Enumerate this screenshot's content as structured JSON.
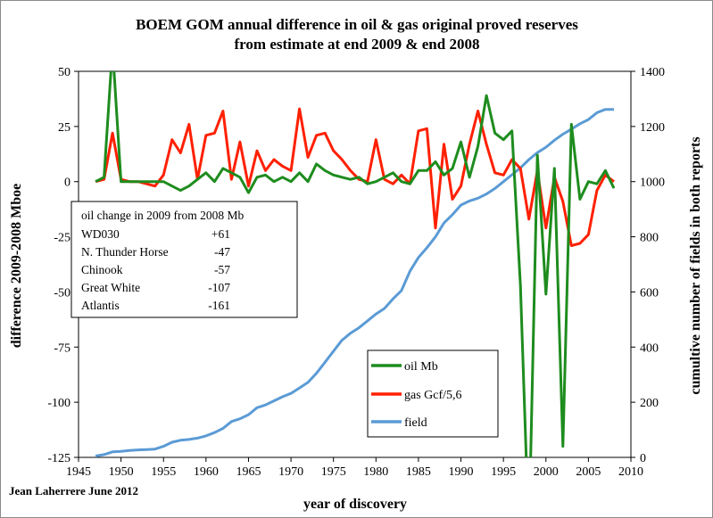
{
  "chart_data": {
    "type": "line",
    "title_line1": "BOEM GOM annual difference in oil & gas original proved reserves",
    "title_line2": "from estimate at end 2009 & end 2008",
    "xlabel": "year of discovery",
    "ylabel_left": "difference 2009-2008 Mboe",
    "ylabel_right": "cumultive number of fields in both reports",
    "xlim": [
      1945,
      2010
    ],
    "ylim_left": [
      -125,
      50
    ],
    "ylim_right": [
      0,
      1400
    ],
    "x_ticks": [
      "1945",
      "1950",
      "1955",
      "1960",
      "1965",
      "1970",
      "1975",
      "1980",
      "1985",
      "1990",
      "1995",
      "2000",
      "2005",
      "2010"
    ],
    "y_left_ticks": [
      "50",
      "25",
      "0",
      "-25",
      "-50",
      "-75",
      "-100",
      "-125"
    ],
    "y_right_ticks": [
      "1400",
      "1200",
      "1000",
      "800",
      "600",
      "400",
      "200",
      "0"
    ],
    "grid": false,
    "credit": "Jean Laherrere June 2012",
    "annotation": {
      "heading": "oil change in 2009 from 2008 Mb",
      "rows": [
        {
          "name": "WD030",
          "value": "+61"
        },
        {
          "name": "N. Thunder Horse",
          "value": "-47"
        },
        {
          "name": "Chinook",
          "value": "-57"
        },
        {
          "name": "Great White",
          "value": "-107"
        },
        {
          "name": "Atlantis",
          "value": "-161"
        }
      ]
    },
    "legend_position": "bottom-center",
    "series": [
      {
        "name": "oil Mb",
        "axis": "left",
        "color": "#1e8c1e",
        "points": [
          [
            1947,
            0
          ],
          [
            1948,
            2
          ],
          [
            1949,
            61
          ],
          [
            1950,
            0
          ],
          [
            1951,
            0
          ],
          [
            1952,
            0
          ],
          [
            1953,
            0
          ],
          [
            1954,
            0
          ],
          [
            1955,
            0
          ],
          [
            1956,
            -2
          ],
          [
            1957,
            -4
          ],
          [
            1958,
            -2
          ],
          [
            1959,
            1
          ],
          [
            1960,
            4
          ],
          [
            1961,
            0
          ],
          [
            1962,
            6
          ],
          [
            1963,
            4
          ],
          [
            1964,
            2
          ],
          [
            1965,
            -5
          ],
          [
            1966,
            2
          ],
          [
            1967,
            3
          ],
          [
            1968,
            0
          ],
          [
            1969,
            2
          ],
          [
            1970,
            0
          ],
          [
            1971,
            4
          ],
          [
            1972,
            0
          ],
          [
            1973,
            8
          ],
          [
            1974,
            5
          ],
          [
            1975,
            3
          ],
          [
            1976,
            2
          ],
          [
            1977,
            1
          ],
          [
            1978,
            2
          ],
          [
            1979,
            -1
          ],
          [
            1980,
            0
          ],
          [
            1981,
            2
          ],
          [
            1982,
            4
          ],
          [
            1983,
            0
          ],
          [
            1984,
            -1
          ],
          [
            1985,
            5
          ],
          [
            1986,
            5
          ],
          [
            1987,
            9
          ],
          [
            1988,
            3
          ],
          [
            1989,
            6
          ],
          [
            1990,
            18
          ],
          [
            1991,
            2
          ],
          [
            1992,
            16
          ],
          [
            1993,
            39
          ],
          [
            1994,
            22
          ],
          [
            1995,
            19
          ],
          [
            1996,
            23
          ],
          [
            1997,
            -47
          ],
          [
            1998,
            -161
          ],
          [
            1999,
            12
          ],
          [
            2000,
            -51
          ],
          [
            2001,
            6
          ],
          [
            2002,
            -120
          ],
          [
            2003,
            26
          ],
          [
            2004,
            -8
          ],
          [
            2005,
            0
          ],
          [
            2006,
            -1
          ],
          [
            2007,
            5
          ],
          [
            2008,
            -3
          ]
        ]
      },
      {
        "name": "gas Gcf/5,6",
        "axis": "left",
        "color": "#ff2000",
        "points": [
          [
            1947,
            0
          ],
          [
            1948,
            1
          ],
          [
            1949,
            22
          ],
          [
            1950,
            1
          ],
          [
            1951,
            0
          ],
          [
            1952,
            0
          ],
          [
            1953,
            -1
          ],
          [
            1954,
            -2
          ],
          [
            1955,
            3
          ],
          [
            1956,
            19
          ],
          [
            1957,
            13
          ],
          [
            1958,
            26
          ],
          [
            1959,
            1
          ],
          [
            1960,
            21
          ],
          [
            1961,
            22
          ],
          [
            1962,
            32
          ],
          [
            1963,
            1
          ],
          [
            1964,
            18
          ],
          [
            1965,
            -2
          ],
          [
            1966,
            14
          ],
          [
            1967,
            5
          ],
          [
            1968,
            10
          ],
          [
            1969,
            7
          ],
          [
            1970,
            5
          ],
          [
            1971,
            33
          ],
          [
            1972,
            11
          ],
          [
            1973,
            21
          ],
          [
            1974,
            22
          ],
          [
            1975,
            14
          ],
          [
            1976,
            10
          ],
          [
            1977,
            5
          ],
          [
            1978,
            1
          ],
          [
            1979,
            0
          ],
          [
            1980,
            19
          ],
          [
            1981,
            1
          ],
          [
            1982,
            -1
          ],
          [
            1983,
            3
          ],
          [
            1984,
            -1
          ],
          [
            1985,
            23
          ],
          [
            1986,
            24
          ],
          [
            1987,
            -21
          ],
          [
            1988,
            17
          ],
          [
            1989,
            -8
          ],
          [
            1990,
            -2
          ],
          [
            1991,
            17
          ],
          [
            1992,
            32
          ],
          [
            1993,
            17
          ],
          [
            1994,
            4
          ],
          [
            1995,
            3
          ],
          [
            1996,
            10
          ],
          [
            1997,
            6
          ],
          [
            1998,
            -17
          ],
          [
            1999,
            5
          ],
          [
            2000,
            -21
          ],
          [
            2001,
            2
          ],
          [
            2002,
            -9
          ],
          [
            2003,
            -29
          ],
          [
            2004,
            -28
          ],
          [
            2005,
            -24
          ],
          [
            2006,
            -4
          ],
          [
            2007,
            3
          ],
          [
            2008,
            0
          ]
        ]
      },
      {
        "name": "field",
        "axis": "right",
        "color": "#5b9bd5",
        "points": [
          [
            1947,
            5
          ],
          [
            1948,
            10
          ],
          [
            1949,
            20
          ],
          [
            1950,
            22
          ],
          [
            1951,
            25
          ],
          [
            1952,
            27
          ],
          [
            1953,
            28
          ],
          [
            1954,
            30
          ],
          [
            1955,
            40
          ],
          [
            1956,
            55
          ],
          [
            1957,
            62
          ],
          [
            1958,
            65
          ],
          [
            1959,
            70
          ],
          [
            1960,
            78
          ],
          [
            1961,
            90
          ],
          [
            1962,
            105
          ],
          [
            1963,
            130
          ],
          [
            1964,
            140
          ],
          [
            1965,
            155
          ],
          [
            1966,
            180
          ],
          [
            1967,
            190
          ],
          [
            1968,
            205
          ],
          [
            1969,
            220
          ],
          [
            1970,
            232
          ],
          [
            1971,
            252
          ],
          [
            1972,
            272
          ],
          [
            1973,
            305
          ],
          [
            1974,
            345
          ],
          [
            1975,
            385
          ],
          [
            1976,
            425
          ],
          [
            1977,
            450
          ],
          [
            1978,
            470
          ],
          [
            1979,
            495
          ],
          [
            1980,
            520
          ],
          [
            1981,
            540
          ],
          [
            1982,
            575
          ],
          [
            1983,
            605
          ],
          [
            1984,
            675
          ],
          [
            1985,
            725
          ],
          [
            1986,
            760
          ],
          [
            1987,
            800
          ],
          [
            1988,
            850
          ],
          [
            1989,
            880
          ],
          [
            1990,
            915
          ],
          [
            1991,
            930
          ],
          [
            1992,
            940
          ],
          [
            1993,
            955
          ],
          [
            1994,
            975
          ],
          [
            1995,
            1000
          ],
          [
            1996,
            1025
          ],
          [
            1997,
            1050
          ],
          [
            1998,
            1080
          ],
          [
            1999,
            1105
          ],
          [
            2000,
            1125
          ],
          [
            2001,
            1150
          ],
          [
            2002,
            1172
          ],
          [
            2003,
            1190
          ],
          [
            2004,
            1210
          ],
          [
            2005,
            1225
          ],
          [
            2006,
            1250
          ],
          [
            2007,
            1262
          ],
          [
            2008,
            1262
          ]
        ]
      }
    ]
  }
}
